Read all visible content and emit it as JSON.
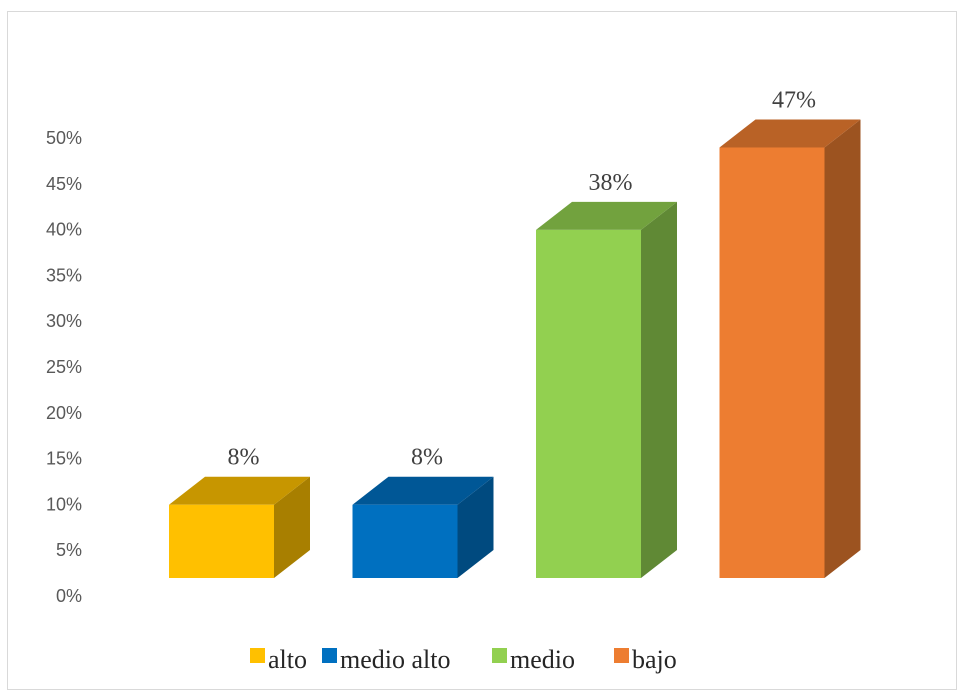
{
  "chart_data": {
    "type": "bar",
    "style": "3d-column",
    "title": "",
    "xlabel": "",
    "ylabel": "",
    "ylim": [
      0,
      0.5
    ],
    "yticks": [
      "0%",
      "5%",
      "10%",
      "15%",
      "20%",
      "25%",
      "30%",
      "35%",
      "40%",
      "45%",
      "50%"
    ],
    "categories": [
      "alto",
      "medio alto",
      "medio",
      "bajo"
    ],
    "values": [
      0.08,
      0.08,
      0.38,
      0.47
    ],
    "data_labels": [
      "8%",
      "8%",
      "38%",
      "47%"
    ],
    "colors": [
      "#FFC000",
      "#0070C0",
      "#92D050",
      "#ED7D31"
    ],
    "grid": false,
    "legend": "bottom"
  }
}
